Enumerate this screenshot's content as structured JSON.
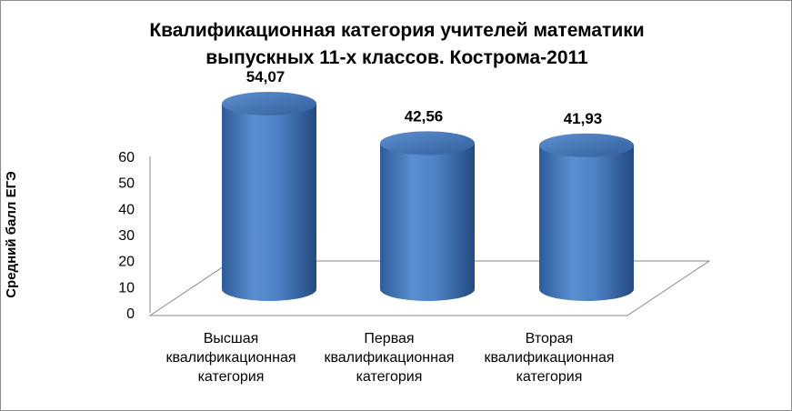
{
  "chart_data": {
    "type": "bar",
    "title": "Квалификационная категория учителей математики выпускных 11-х классов. Кострома-2011",
    "title_lines": [
      "Квалификационная категория учителей математики",
      "выпускных 11-х классов. Кострома-2011"
    ],
    "ylabel": "Средний балл ЕГЭ",
    "xlabel": "",
    "ylim": [
      0,
      60
    ],
    "yticks": [
      "0",
      "10",
      "20",
      "30",
      "40",
      "50",
      "60"
    ],
    "categories": [
      "Высшая квалификационная категория",
      "Первая квалификационная категория",
      "Вторая квалификационная категория"
    ],
    "category_lines": [
      [
        "Высшая",
        "квалификационная",
        "категория"
      ],
      [
        "Первая",
        "квалификационная",
        "категория"
      ],
      [
        "Вторая",
        "квалификационная",
        "категория"
      ]
    ],
    "values": [
      54.07,
      42.56,
      41.93
    ],
    "data_labels": [
      "54,07",
      "42,56",
      "41,93"
    ],
    "bar_style": "3d-cylinder",
    "bar_color": "#4a7dbf",
    "grid": false,
    "legend": "none"
  }
}
